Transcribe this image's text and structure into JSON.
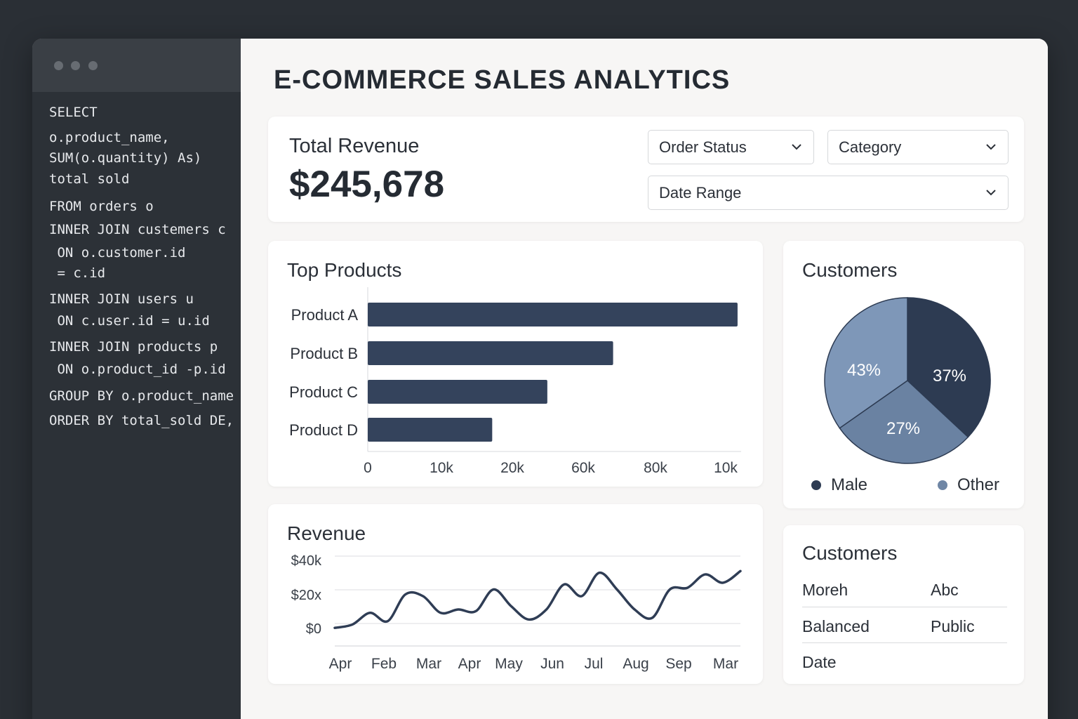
{
  "window": {
    "code_lines": [
      "SELECT",
      "o.product_name,",
      "SUM(o.quantity) As)",
      "total sold",
      "FROM orders o",
      "INNER JOIN custemers c",
      " ON o.customer.id",
      " = c.id",
      "INNER JOIN users u",
      " ON c.user.id = u.id",
      "INNER JOIN products p",
      " ON o.product_id -p.id",
      "GROUP BY o.product_name",
      "ORDER BY total_sold DE,"
    ]
  },
  "dashboard": {
    "title": "E-COMMERCE SALES ANALYTICS",
    "revenue": {
      "label": "Total Revenue",
      "value": "$245,678"
    },
    "filters": {
      "order_status": "Order Status",
      "category": "Category",
      "date_range": "Date Range"
    },
    "top_products": {
      "title": "Top Products"
    },
    "customers_pie": {
      "title": "Customers",
      "legend": [
        {
          "label": "Male",
          "color": "#2d3b52"
        },
        {
          "label": "Other",
          "color": "#6f86a5"
        }
      ]
    },
    "revenue_chart": {
      "title": "Revenue"
    },
    "customers_table": {
      "title": "Customers",
      "rows": [
        [
          "Moreh",
          "Abc"
        ],
        [
          "Balanced",
          "Public"
        ],
        [
          "Date",
          ""
        ]
      ]
    }
  },
  "colors": {
    "bar": "#34435c",
    "pie_dark": "#2d3b52",
    "pie_light": "#7e97b8",
    "pie_mid": "#6a82a2",
    "line": "#2f3d55"
  },
  "chart_data": [
    {
      "type": "bar",
      "orientation": "horizontal",
      "title": "Top Products",
      "categories": [
        "Product A",
        "Product B",
        "Product C",
        "Product D"
      ],
      "values": [
        10400,
        6900,
        5050,
        3500
      ],
      "xticks": [
        "0",
        "10k",
        "20k",
        "60k",
        "80k",
        "10k"
      ],
      "xlim": [
        0,
        10500
      ],
      "grid": false
    },
    {
      "type": "pie",
      "title": "Customers",
      "slices": [
        {
          "label": "37%",
          "value": 37,
          "color": "#2d3b52"
        },
        {
          "label": "27%",
          "value": 27,
          "color": "#6a82a2"
        },
        {
          "label": "43%",
          "value": 43,
          "color": "#7e97b8"
        }
      ]
    },
    {
      "type": "line",
      "title": "Revenue",
      "yticks": [
        "$40k",
        "$20x",
        "$0"
      ],
      "ylim": [
        -11000,
        47000
      ],
      "xticks": [
        "Apr",
        "Feb",
        "Mar",
        "Apr",
        "May",
        "Jun",
        "Jul",
        "Aug",
        "Sep",
        "Mar"
      ],
      "values": [
        -1000,
        1000,
        8000,
        3000,
        19000,
        18000,
        8000,
        10000,
        9000,
        22000,
        12000,
        4000,
        10000,
        25000,
        18000,
        32000,
        22000,
        10000,
        5000,
        22000,
        23000,
        31000,
        26000,
        33000
      ],
      "grid": true
    }
  ]
}
